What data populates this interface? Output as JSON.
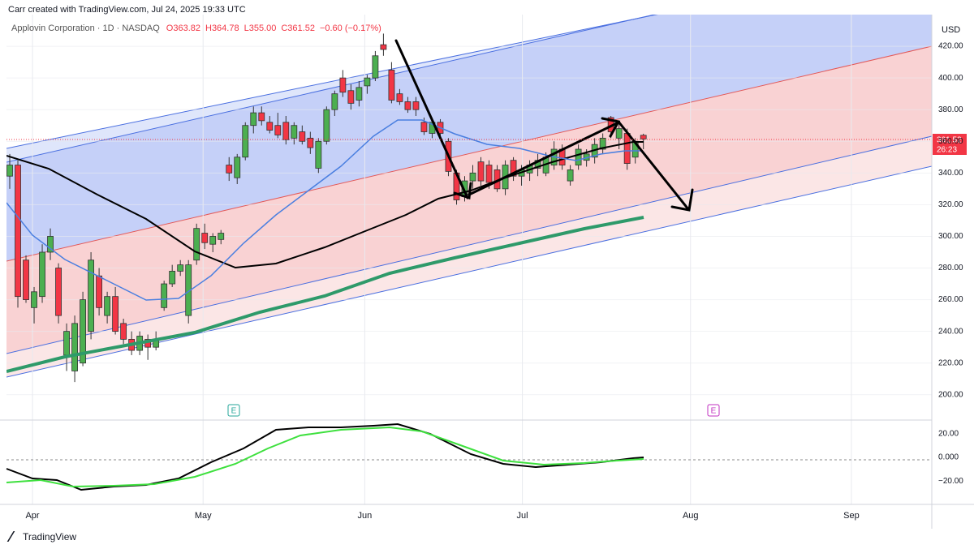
{
  "chart_data": {
    "type": "candlestick",
    "caption": "Carr created with TradingView.com, Jul 24, 2025 19:33 UTC",
    "title": "Applovin Corporation · 1D · NASDAQ",
    "legend_values": [
      "O363.82",
      "H364.78",
      "L355.00",
      "C361.52",
      "−0.60 (−0.17%)"
    ],
    "currency": "USD",
    "last_price_label": "361.52",
    "countdown": "26:23",
    "events": [
      "E",
      "E"
    ],
    "watermark": "TradingView",
    "up_color": "#4caf50",
    "down_color": "#f23645",
    "ohlc": [
      [
        338,
        352,
        330,
        345
      ],
      [
        345,
        348,
        255,
        262
      ],
      [
        285,
        288,
        258,
        260
      ],
      [
        255,
        268,
        245,
        265
      ],
      [
        262,
        295,
        258,
        290
      ],
      [
        290,
        305,
        285,
        300
      ],
      [
        280,
        283,
        245,
        250
      ],
      [
        225,
        245,
        215,
        240
      ],
      [
        215,
        250,
        208,
        245
      ],
      [
        220,
        265,
        218,
        260
      ],
      [
        240,
        290,
        235,
        285
      ],
      [
        275,
        280,
        250,
        255
      ],
      [
        250,
        265,
        245,
        262
      ],
      [
        262,
        268,
        238,
        240
      ],
      [
        245,
        248,
        232,
        235
      ],
      [
        235,
        240,
        225,
        228
      ],
      [
        228,
        240,
        225,
        237
      ],
      [
        235,
        238,
        222,
        230
      ],
      [
        230,
        240,
        228,
        235
      ],
      [
        255,
        272,
        253,
        270
      ],
      [
        270,
        282,
        268,
        278
      ],
      [
        278,
        285,
        275,
        282
      ],
      [
        250,
        285,
        245,
        282
      ],
      [
        285,
        308,
        282,
        305
      ],
      [
        302,
        308,
        292,
        296
      ],
      [
        295,
        302,
        290,
        300
      ],
      [
        298,
        304,
        295,
        302
      ],
      [
        345,
        350,
        335,
        340
      ],
      [
        337,
        352,
        333,
        350
      ],
      [
        350,
        372,
        348,
        370
      ],
      [
        370,
        382,
        365,
        378
      ],
      [
        378,
        382,
        370,
        373
      ],
      [
        372,
        376,
        365,
        367
      ],
      [
        370,
        378,
        362,
        364
      ],
      [
        372,
        376,
        358,
        361
      ],
      [
        362,
        372,
        358,
        370
      ],
      [
        366,
        370,
        358,
        360
      ],
      [
        362,
        366,
        352,
        356
      ],
      [
        343,
        362,
        340,
        360
      ],
      [
        360,
        382,
        358,
        380
      ],
      [
        380,
        392,
        376,
        390
      ],
      [
        400,
        405,
        388,
        391
      ],
      [
        392,
        396,
        380,
        384
      ],
      [
        386,
        398,
        382,
        394
      ],
      [
        395,
        402,
        390,
        400
      ],
      [
        400,
        417,
        398,
        414
      ],
      [
        421,
        428,
        414,
        418
      ],
      [
        405,
        410,
        384,
        386
      ],
      [
        390,
        393,
        383,
        385
      ],
      [
        385,
        388,
        378,
        380
      ],
      [
        385,
        388,
        376,
        380
      ],
      [
        372,
        375,
        364,
        366
      ],
      [
        365,
        375,
        362,
        372
      ],
      [
        372,
        374,
        362,
        365
      ],
      [
        360,
        362,
        338,
        341
      ],
      [
        340,
        342,
        320,
        323
      ],
      [
        325,
        338,
        322,
        335
      ],
      [
        335,
        345,
        330,
        340
      ],
      [
        347,
        350,
        332,
        335
      ],
      [
        345,
        348,
        330,
        334
      ],
      [
        342,
        345,
        328,
        330
      ],
      [
        330,
        348,
        326,
        345
      ],
      [
        348,
        350,
        335,
        338
      ],
      [
        338,
        345,
        332,
        342
      ],
      [
        340,
        348,
        335,
        345
      ],
      [
        343,
        352,
        338,
        348
      ],
      [
        340,
        353,
        338,
        350
      ],
      [
        345,
        360,
        342,
        355
      ],
      [
        355,
        358,
        342,
        345
      ],
      [
        335,
        345,
        332,
        342
      ],
      [
        345,
        358,
        342,
        355
      ],
      [
        348,
        355,
        344,
        352
      ],
      [
        350,
        362,
        346,
        358
      ],
      [
        355,
        365,
        352,
        362
      ],
      [
        375,
        376,
        362,
        366
      ],
      [
        362,
        372,
        355,
        368
      ],
      [
        365,
        368,
        342,
        346
      ],
      [
        350,
        362,
        346,
        360
      ],
      [
        363.82,
        364.78,
        355,
        361.52
      ]
    ],
    "xlim": [
      -0.4,
      113.5
    ],
    "xticks": [
      {
        "value": 2.8,
        "label": "Apr"
      },
      {
        "value": 23.8,
        "label": "May"
      },
      {
        "value": 43.7,
        "label": "Jun"
      },
      {
        "value": 63.1,
        "label": "Jul"
      },
      {
        "value": 83.8,
        "label": "Aug"
      },
      {
        "value": 103.6,
        "label": "Sep"
      }
    ],
    "ylim": [
      184,
      440
    ],
    "yticks": [
      {
        "value": 200,
        "label": "200.00"
      },
      {
        "value": 220,
        "label": "220.00"
      },
      {
        "value": 240,
        "label": "240.00"
      },
      {
        "value": 260,
        "label": "260.00"
      },
      {
        "value": 280,
        "label": "280.00"
      },
      {
        "value": 300,
        "label": "300.00"
      },
      {
        "value": 320,
        "label": "320.00"
      },
      {
        "value": 340,
        "label": "340.00"
      },
      {
        "value": 360,
        "label": "360.00"
      },
      {
        "value": 380,
        "label": "380.00"
      },
      {
        "value": 400,
        "label": "400.00"
      },
      {
        "value": 420,
        "label": "420.00"
      }
    ],
    "y2lim": [
      -37,
      30
    ],
    "y2ticks": [
      {
        "value": 20,
        "label": "20.00"
      },
      {
        "value": 0,
        "label": "0.000"
      },
      {
        "value": -20,
        "label": "−20.00"
      }
    ],
    "grid": true
  }
}
